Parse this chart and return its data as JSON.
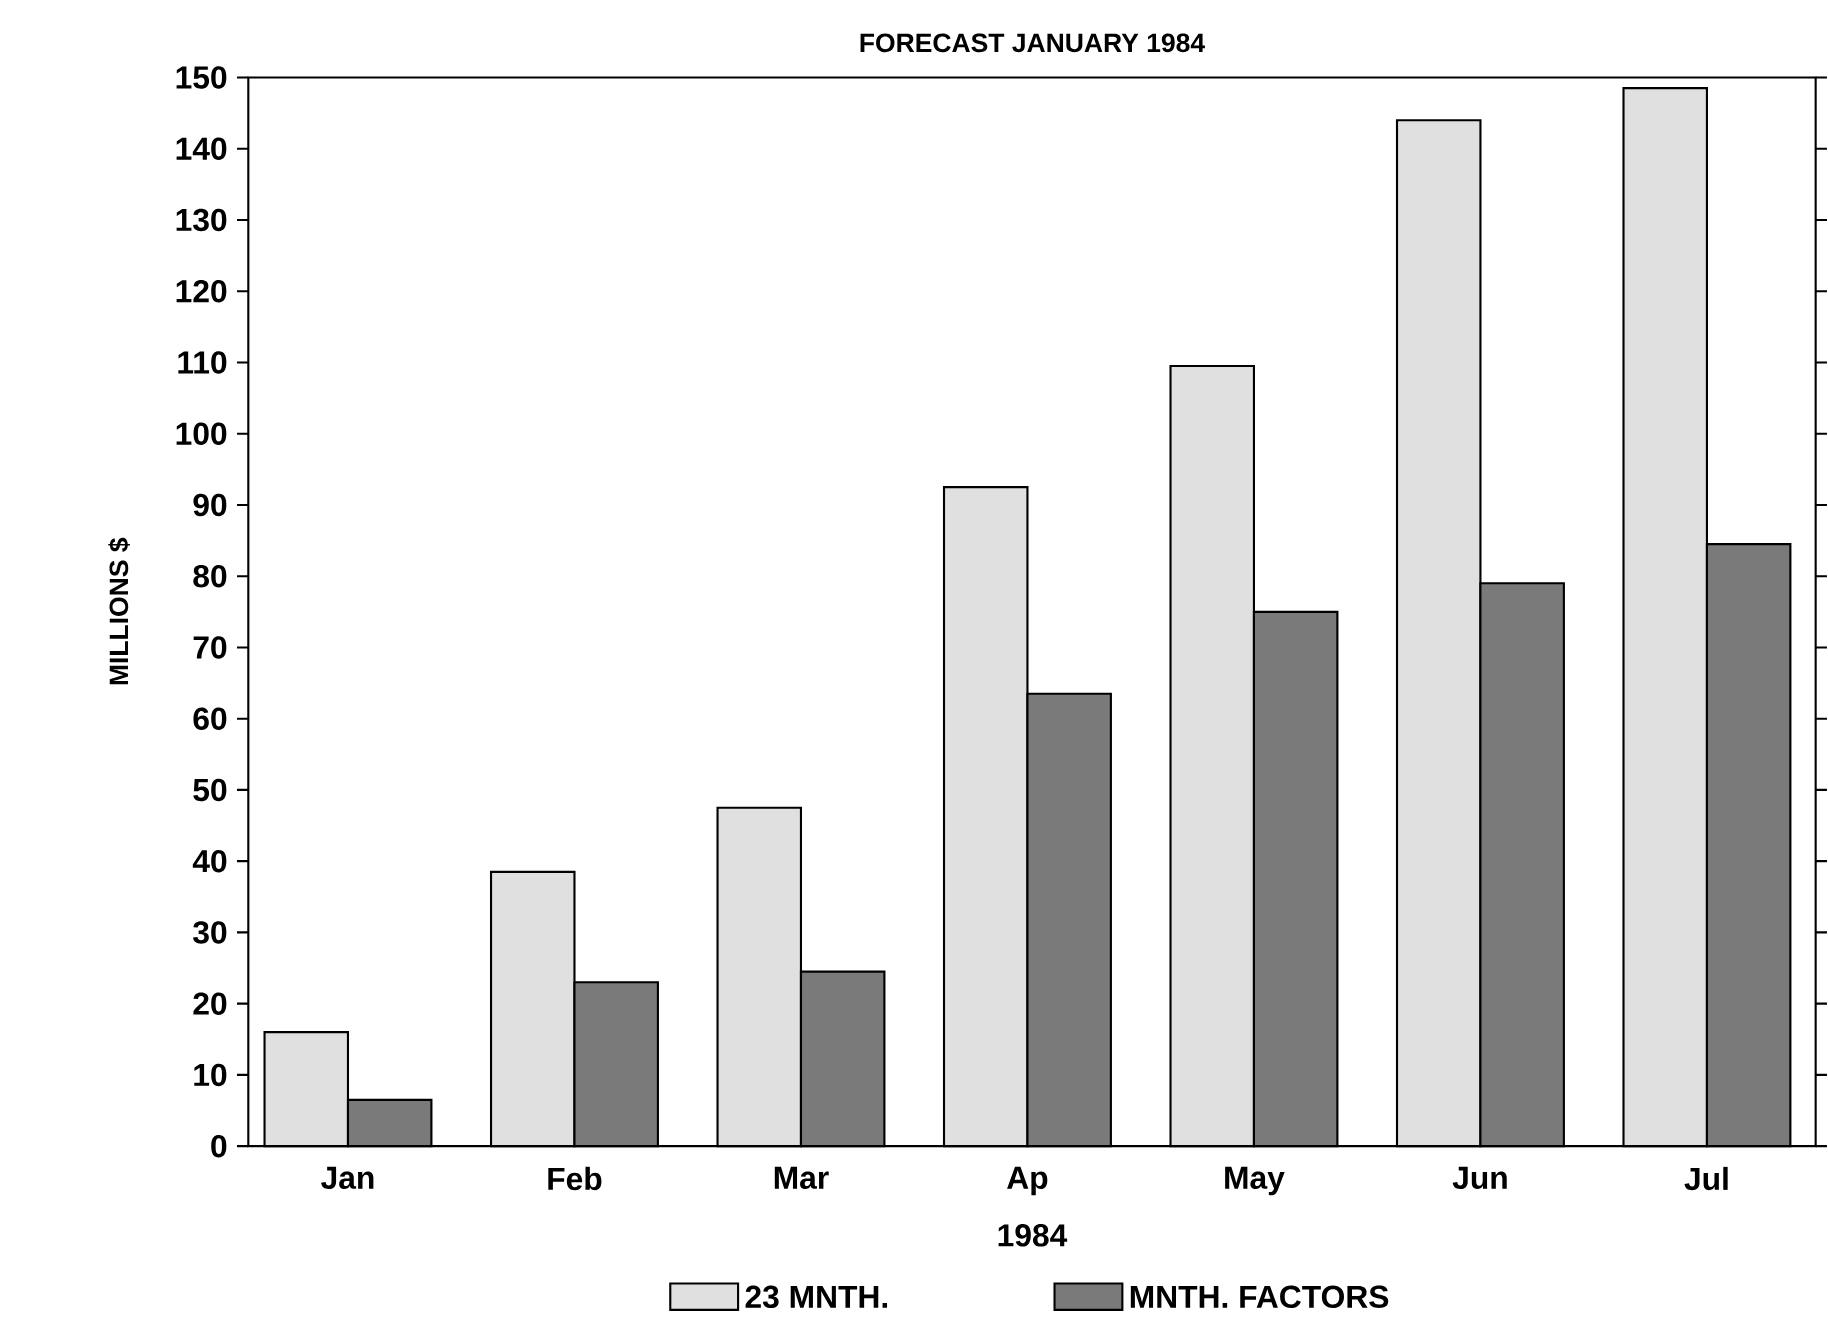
{
  "chart_data": {
    "type": "bar",
    "title": "FORECAST JANUARY 1984",
    "xlabel": "1984",
    "ylabel": "MILLIONS $",
    "categories": [
      "Jan",
      "Feb",
      "Mar",
      "Ap",
      "May",
      "Jun",
      "Jul"
    ],
    "series": [
      {
        "name": "23 MNTH.",
        "color": "#e0e0e0",
        "values": [
          16,
          38.5,
          47.5,
          92.5,
          109.5,
          144,
          148.5
        ]
      },
      {
        "name": "MNTH. FACTORS",
        "color": "#7a7a7a",
        "values": [
          6.5,
          23,
          24.5,
          63.5,
          75,
          79,
          84.5
        ]
      }
    ],
    "ylim": [
      0,
      150
    ],
    "yticks": [
      0,
      10,
      20,
      30,
      40,
      50,
      60,
      70,
      80,
      90,
      100,
      110,
      120,
      130,
      140,
      150
    ],
    "legend": "bottom",
    "grid": false
  }
}
